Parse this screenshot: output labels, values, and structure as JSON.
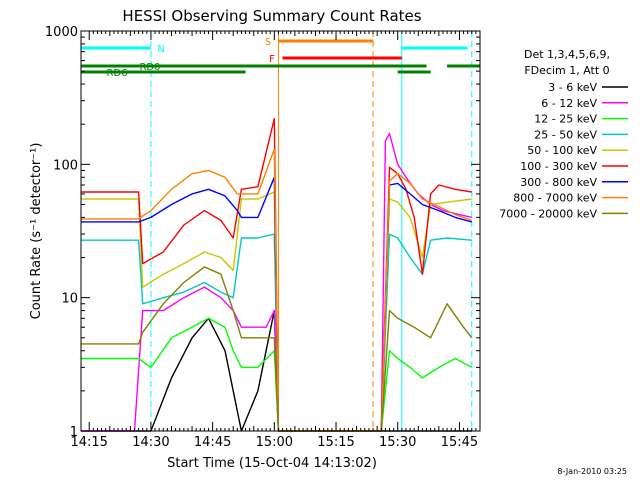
{
  "chart_data": {
    "type": "line",
    "title": "HESSI Observing Summary Count Rates",
    "xlabel": "Start Time (15-Oct-04 14:13:02)",
    "ylabel": "Count Rate (s⁻¹ detector⁻¹)",
    "yscale": "log",
    "ylim": [
      1,
      1000
    ],
    "xlim": [
      "14:13",
      "15:50"
    ],
    "x_ticks": [
      "14:15",
      "14:30",
      "14:45",
      "15:00",
      "15:15",
      "15:30",
      "15:45"
    ],
    "y_ticks": [
      "1",
      "10",
      "100",
      "1000"
    ],
    "footer": "8-Jan-2010 03:25",
    "legend_position": "right",
    "legend_header": [
      "Det 1,3,4,5,6,9,",
      "FDecim 1, Att 0"
    ],
    "flags": [
      {
        "label": "N",
        "color": "#00ffff",
        "segments": [
          [
            "14:13",
            "14:30"
          ],
          [
            "15:31",
            "15:47"
          ]
        ]
      },
      {
        "label": "RD0",
        "color": "#008000",
        "segments": [
          [
            "14:13",
            "14:53"
          ],
          [
            "14:53",
            "15:37"
          ],
          [
            "15:42",
            "15:50"
          ]
        ]
      },
      {
        "label": "RD6",
        "color": "#008000",
        "segments": [
          [
            "14:13",
            "14:53"
          ],
          [
            "15:30",
            "15:38"
          ]
        ]
      },
      {
        "label": "S",
        "color": "#ff8000",
        "segments": [
          [
            "15:01",
            "15:24"
          ]
        ]
      },
      {
        "label": "F",
        "color": "#ff0000",
        "segments": [
          [
            "15:02",
            "15:31"
          ]
        ]
      }
    ],
    "vlines": [
      {
        "t": "14:13",
        "color": "#00ffff",
        "style": "solid"
      },
      {
        "t": "14:30",
        "color": "#00ffff",
        "style": "dashed"
      },
      {
        "t": "15:01",
        "color": "#ff8000",
        "style": "solid"
      },
      {
        "t": "15:24",
        "color": "#ff8000",
        "style": "dashed"
      },
      {
        "t": "15:31",
        "color": "#00ffff",
        "style": "solid"
      },
      {
        "t": "15:48",
        "color": "#00ffff",
        "style": "dashed"
      }
    ],
    "series": [
      {
        "name": "3 - 6 keV",
        "color": "#000000",
        "x": [
          "14:13",
          "14:27",
          "14:30",
          "14:35",
          "14:40",
          "14:44",
          "14:48",
          "14:50",
          "14:52",
          "14:56",
          "15:00",
          "15:01",
          "15:26",
          "15:28",
          "15:30",
          "15:32",
          "15:35",
          "15:38",
          "15:40",
          "15:45",
          "15:48"
        ],
        "y": [
          1,
          1,
          1,
          2.5,
          5,
          7,
          4,
          2,
          1,
          2,
          8,
          1,
          1,
          1,
          1,
          1,
          1,
          1,
          1,
          1,
          1
        ]
      },
      {
        "name": "6 - 12 keV",
        "color": "#ff00ff",
        "x": [
          "14:13",
          "14:26",
          "14:28",
          "14:33",
          "14:38",
          "14:43",
          "14:47",
          "14:50",
          "14:52",
          "14:58",
          "15:00",
          "15:01",
          "15:26",
          "15:27",
          "15:28",
          "15:29",
          "15:30",
          "15:32",
          "15:35",
          "15:38",
          "15:41",
          "15:45",
          "15:48"
        ],
        "y": [
          1,
          1,
          8,
          8,
          10,
          12,
          10,
          8,
          6,
          6,
          8,
          1,
          1,
          150,
          170,
          130,
          100,
          80,
          60,
          50,
          45,
          42,
          40
        ]
      },
      {
        "name": "12 - 25 keV",
        "color": "#00ff00",
        "x": [
          "14:13",
          "14:27",
          "14:30",
          "14:35",
          "14:40",
          "14:44",
          "14:48",
          "14:50",
          "14:52",
          "14:56",
          "15:00",
          "15:01",
          "15:26",
          "15:28",
          "15:30",
          "15:33",
          "15:36",
          "15:40",
          "15:44",
          "15:48"
        ],
        "y": [
          3.5,
          3.5,
          3,
          5,
          6,
          7,
          6,
          4,
          3,
          3,
          4,
          1,
          1,
          4,
          3.5,
          3,
          2.5,
          3,
          3.5,
          3
        ]
      },
      {
        "name": "25 - 50 keV",
        "color": "#00c8c8",
        "x": [
          "14:13",
          "14:27",
          "14:28",
          "14:33",
          "14:38",
          "14:43",
          "14:47",
          "14:50",
          "14:52",
          "14:56",
          "15:00",
          "15:01",
          "15:26",
          "15:28",
          "15:30",
          "15:33",
          "15:36",
          "15:38",
          "15:42",
          "15:48"
        ],
        "y": [
          27,
          27,
          9,
          10,
          11,
          13,
          11,
          10,
          28,
          28,
          30,
          1,
          1,
          30,
          28,
          20,
          15,
          27,
          28,
          27
        ]
      },
      {
        "name": "50 - 100 keV",
        "color": "#c8c800",
        "x": [
          "14:13",
          "14:27",
          "14:28",
          "14:33",
          "14:38",
          "14:43",
          "14:47",
          "14:50",
          "14:52",
          "14:56",
          "15:00",
          "15:01",
          "15:26",
          "15:28",
          "15:30",
          "15:33",
          "15:36",
          "15:38",
          "15:42",
          "15:48"
        ],
        "y": [
          55,
          55,
          12,
          15,
          18,
          22,
          20,
          16,
          55,
          55,
          62,
          1,
          1,
          55,
          52,
          40,
          20,
          50,
          52,
          55
        ]
      },
      {
        "name": "100 - 300 keV",
        "color": "#ff0000",
        "x": [
          "14:13",
          "14:27",
          "14:28",
          "14:33",
          "14:38",
          "14:43",
          "14:47",
          "14:50",
          "14:52",
          "14:56",
          "15:00",
          "15:01",
          "15:26",
          "15:28",
          "15:30",
          "15:32",
          "15:34",
          "15:36",
          "15:38",
          "15:40",
          "15:44",
          "15:48"
        ],
        "y": [
          62,
          62,
          18,
          22,
          35,
          45,
          38,
          28,
          65,
          68,
          220,
          1,
          1,
          95,
          85,
          65,
          40,
          15,
          60,
          70,
          65,
          62
        ]
      },
      {
        "name": "300 - 800 keV",
        "color": "#0000ff",
        "x": [
          "14:13",
          "14:27",
          "14:30",
          "14:35",
          "14:40",
          "14:44",
          "14:48",
          "14:51",
          "14:52",
          "14:56",
          "15:00",
          "15:01",
          "15:26",
          "15:28",
          "15:30",
          "15:33",
          "15:36",
          "15:40",
          "15:44",
          "15:48"
        ],
        "y": [
          37,
          37,
          40,
          50,
          60,
          65,
          58,
          45,
          40,
          40,
          80,
          1,
          1,
          70,
          72,
          60,
          50,
          45,
          40,
          37
        ]
      },
      {
        "name": "800 - 7000 keV",
        "color": "#ff8000",
        "x": [
          "14:13",
          "14:27",
          "14:30",
          "14:35",
          "14:40",
          "14:44",
          "14:48",
          "14:51",
          "14:52",
          "14:56",
          "15:00",
          "15:01",
          "15:26",
          "15:28",
          "15:30",
          "15:33",
          "15:36",
          "15:40",
          "15:44",
          "15:48"
        ],
        "y": [
          39,
          39,
          45,
          65,
          85,
          90,
          80,
          60,
          60,
          60,
          130,
          1,
          1,
          75,
          85,
          72,
          55,
          48,
          42,
          38
        ]
      },
      {
        "name": "7000 - 20000 keV",
        "color": "#808000",
        "x": [
          "14:13",
          "14:27",
          "14:28",
          "14:33",
          "14:38",
          "14:43",
          "14:47",
          "14:50",
          "14:52",
          "14:56",
          "15:00",
          "15:01",
          "15:26",
          "15:28",
          "15:30",
          "15:34",
          "15:38",
          "15:42",
          "15:46",
          "15:48"
        ],
        "y": [
          4.5,
          4.5,
          5.5,
          9,
          13,
          17,
          15,
          8,
          5,
          5,
          5,
          1,
          1,
          8,
          7,
          6,
          5,
          9,
          6,
          5
        ]
      }
    ]
  }
}
